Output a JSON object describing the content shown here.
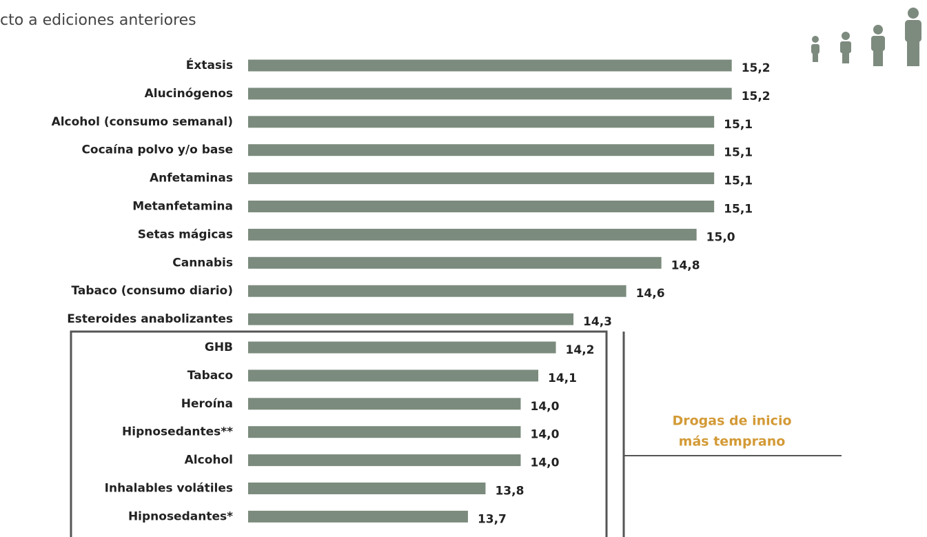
{
  "chart_data": {
    "type": "hbar",
    "title": "cto a ediciones anteriores",
    "categories": [
      "Éxtasis",
      "Alucinógenos",
      "Alcohol (consumo semanal)",
      "Cocaína polvo y/o base",
      "Anfetaminas",
      "Metanfetamina",
      "Setas mágicas",
      "Cannabis",
      "Tabaco (consumo diario)",
      "Esteroides anabolizantes",
      "GHB",
      "Tabaco",
      "Heroína",
      "Hipnosedantes**",
      "Alcohol",
      "Inhalables volátiles",
      "Hipnosedantes*"
    ],
    "values": [
      15.2,
      15.2,
      15.1,
      15.1,
      15.1,
      15.1,
      15.0,
      14.8,
      14.6,
      14.3,
      14.2,
      14.1,
      14.0,
      14.0,
      14.0,
      13.8,
      13.7
    ],
    "value_labels": [
      "15,2",
      "15,2",
      "15,1",
      "15,1",
      "15,1",
      "15,1",
      "15,0",
      "14,8",
      "14,6",
      "14,3",
      "14,2",
      "14,1",
      "14,0",
      "14,0",
      "14,0",
      "13,8",
      "13,7"
    ],
    "color": "#7b8b7d",
    "xlim": [
      12.45,
      15.55
    ],
    "annotation": [
      "Drogas de inicio",
      "más temprano"
    ],
    "annotation_color": "#d39a36"
  }
}
